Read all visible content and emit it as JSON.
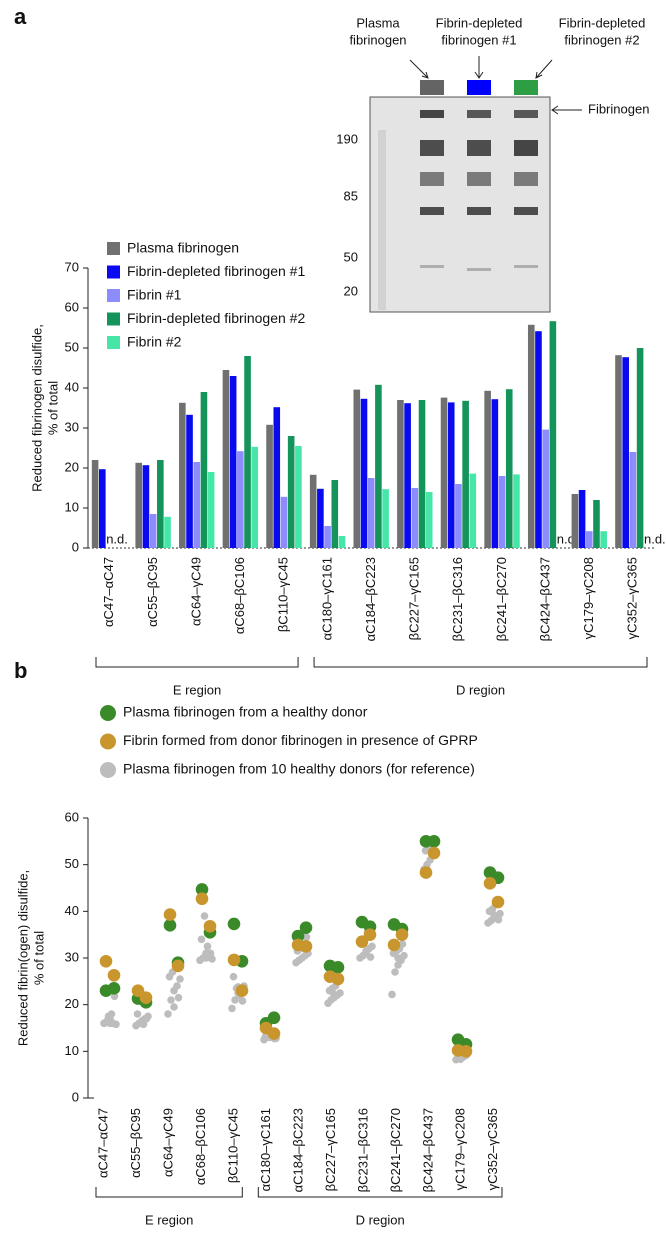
{
  "panels": [
    "a",
    "b"
  ],
  "inset": {
    "lanes": [
      {
        "lines": [
          "Plasma",
          "fibrinogen"
        ],
        "color": "#646464"
      },
      {
        "lines": [
          "Fibrin-depleted",
          "fibrinogen #1"
        ],
        "color": "#0000ff"
      },
      {
        "lines": [
          "Fibrin-depleted",
          "fibrinogen #2"
        ],
        "color": "#2e9e44"
      }
    ],
    "markers": [
      190,
      85,
      50,
      20
    ],
    "band_label": "Fibrinogen"
  },
  "chart_data": [
    {
      "type": "bar",
      "ylabel": [
        "Reduced fibrinogen disulfide,",
        "% of total"
      ],
      "categories": [
        "αC47–αC47",
        "αC55–βC95",
        "αC64–γC49",
        "αC68–βC106",
        "βC110–γC45",
        "αC180–γC161",
        "αC184–βC223",
        "βC227–γC165",
        "βC231–βC316",
        "βC241–βC270",
        "βC424–βC437",
        "γC179–γC208",
        "γC352–γC365"
      ],
      "series": [
        {
          "name": "Plasma fibrinogen",
          "color": "#707070",
          "values": [
            22,
            21.3,
            36.3,
            44.5,
            30.8,
            18.3,
            39.6,
            37,
            37.6,
            39.3,
            55.8,
            13.5,
            48.2
          ]
        },
        {
          "name": "Fibrin-depleted fibrinogen #1",
          "color": "#0a0af0",
          "values": [
            19.7,
            20.7,
            33.3,
            43,
            35.2,
            14.8,
            37.3,
            36.2,
            36.4,
            37.2,
            54.2,
            14.5,
            47.7
          ]
        },
        {
          "name": "Fibrin #1",
          "color": "#8c8cff",
          "values": [
            null,
            8.5,
            21.5,
            24.2,
            12.8,
            5.5,
            17.5,
            15,
            16,
            18,
            29.6,
            4.2,
            24
          ]
        },
        {
          "name": "Fibrin-depleted fibrinogen #2",
          "color": "#14935a",
          "values": [
            null,
            22,
            39,
            48,
            28,
            17,
            40.8,
            37,
            36.8,
            39.7,
            56.7,
            12,
            50
          ]
        },
        {
          "name": "Fibrin #2",
          "color": "#45e6a8",
          "values": [
            null,
            7.8,
            19,
            25.3,
            25.5,
            3,
            14.7,
            14,
            18.6,
            18.4,
            null,
            4.2,
            null
          ]
        }
      ],
      "annotations": [
        "n.d.",
        "n.d.",
        "n.d."
      ],
      "groups": [
        "E region",
        "D region"
      ],
      "ylim": [
        0,
        70
      ],
      "yticks": [
        0,
        10,
        20,
        30,
        40,
        50,
        60,
        70
      ],
      "legend": "top-left"
    },
    {
      "type": "scatter",
      "ylabel": [
        "Reduced fibrin(ogen) disulfide,",
        "% of total"
      ],
      "categories": [
        "αC47–αC47",
        "αC55–βC95",
        "αC64–γC49",
        "αC68–βC106",
        "βC110–γC45",
        "αC180–γC161",
        "αC184–βC223",
        "βC227–γC165",
        "βC231–βC316",
        "βC241–βC270",
        "βC424–βC437",
        "γC179–γC208",
        "γC352–γC365"
      ],
      "series": [
        {
          "name": "Plasma fibrinogen from 10 healthy donors (for reference)",
          "color": "#bdbdbd",
          "values": [
            [
              16,
              16.5,
              17,
              16,
              15.8,
              16.2,
              17.5,
              18,
              21.8,
              16
            ],
            [
              15.5,
              16,
              16.5,
              17,
              17.5,
              18,
              16,
              15.8,
              17,
              16.5
            ],
            [
              18,
              21,
              23,
              24,
              25.5,
              26,
              27,
              28.5,
              21.5,
              19.5
            ],
            [
              29.5,
              30,
              31,
              30.5,
              29.8,
              34,
              39,
              32.5,
              31,
              30
            ],
            [
              19.2,
              21,
              22.5,
              23,
              24,
              26,
              23.5,
              22,
              20.8,
              23.8
            ],
            [
              12.5,
              13,
              13.5,
              14,
              12.8,
              13.2,
              13.8,
              14.2,
              12.7,
              13
            ],
            [
              29,
              29.5,
              30,
              30.5,
              31,
              31.5,
              32,
              33,
              34.5,
              35
            ],
            [
              20.3,
              21,
              21.5,
              22,
              22.5,
              23,
              23.5,
              24,
              25,
              22.2
            ],
            [
              30,
              30.5,
              31,
              32,
              32.5,
              33,
              34,
              35.5,
              30.2,
              31.5
            ],
            [
              22.2,
              27,
              28.5,
              29.5,
              30.5,
              31,
              31.5,
              32,
              33,
              30
            ],
            [
              49,
              50,
              51,
              52,
              52.5,
              53,
              53.5,
              54,
              54.5,
              53.8
            ],
            [
              8.2,
              8.5,
              9,
              9.5,
              10,
              10.3,
              8.3,
              8.8,
              9.2,
              9.8
            ],
            [
              37.5,
              38,
              38.5,
              39,
              39.5,
              40,
              40.5,
              41.5,
              38.2,
              39.2
            ]
          ]
        },
        {
          "name": "Plasma fibrinogen from a healthy donor",
          "color": "#3a8a2a",
          "values": [
            [
              23,
              23.5
            ],
            [
              21.3,
              20.5
            ],
            [
              37,
              29
            ],
            [
              44.7,
              35.5
            ],
            [
              37.3,
              29.3
            ],
            [
              16,
              17.2
            ],
            [
              34.7,
              36.5
            ],
            [
              28.3,
              28
            ],
            [
              37.7,
              36.7
            ],
            [
              37.2,
              36.2
            ],
            [
              55,
              55
            ],
            [
              12.5,
              11.5
            ],
            [
              48.3,
              47.2
            ]
          ]
        },
        {
          "name": "Fibrin formed from donor fibrinogen in presence of GPRP",
          "color": "#c9962e",
          "values": [
            [
              29.3,
              26.3
            ],
            [
              23,
              21.5
            ],
            [
              39.3,
              28.3
            ],
            [
              42.7,
              36.8
            ],
            [
              29.6,
              23
            ],
            [
              15,
              13.8
            ],
            [
              32.8,
              32.5
            ],
            [
              26,
              25.5
            ],
            [
              33.5,
              35
            ],
            [
              32.8,
              35
            ],
            [
              48.3,
              52.5
            ],
            [
              10.2,
              10
            ],
            [
              46,
              42
            ]
          ]
        }
      ],
      "legend_order": [
        1,
        2,
        0
      ],
      "groups": [
        "E region",
        "D region"
      ],
      "ylim": [
        0,
        60
      ],
      "yticks": [
        0,
        10,
        20,
        30,
        40,
        50,
        60
      ],
      "legend": "top-left"
    }
  ]
}
